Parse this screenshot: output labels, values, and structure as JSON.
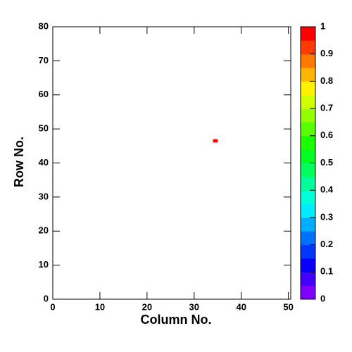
{
  "chart_data": {
    "type": "heatmap",
    "x_label": "Column No.",
    "y_label": "Row No.",
    "xlim": [
      0,
      50.5
    ],
    "xticks": [
      0,
      10,
      20,
      30,
      40,
      50
    ],
    "ylim": [
      0,
      80
    ],
    "yticks": [
      0,
      10,
      20,
      30,
      40,
      50,
      60,
      70,
      80
    ],
    "zlim": [
      0,
      1
    ],
    "zticks": [
      0,
      0.1,
      0.2,
      0.3,
      0.4,
      0.5,
      0.6,
      0.7,
      0.8,
      0.9,
      1
    ],
    "cells": [
      {
        "x": [
          34,
          35
        ],
        "y": [
          46,
          47
        ],
        "value": 1
      }
    ],
    "colorbar": true
  }
}
